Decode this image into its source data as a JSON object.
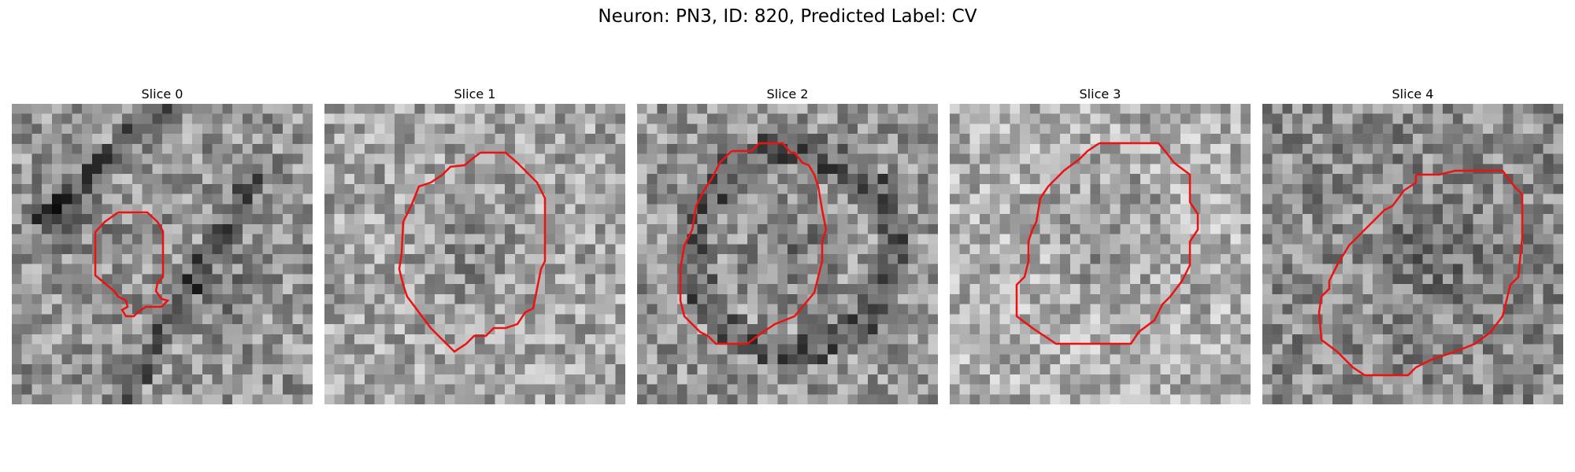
{
  "figure": {
    "title": "Neuron: PN3, ID: 820, Predicted Label: CV"
  },
  "colors": {
    "contour": "#ee1111"
  },
  "slices": [
    {
      "title": "Slice 0"
    },
    {
      "title": "Slice 1"
    },
    {
      "title": "Slice 2"
    },
    {
      "title": "Slice 3"
    },
    {
      "title": "Slice 4"
    }
  ]
}
